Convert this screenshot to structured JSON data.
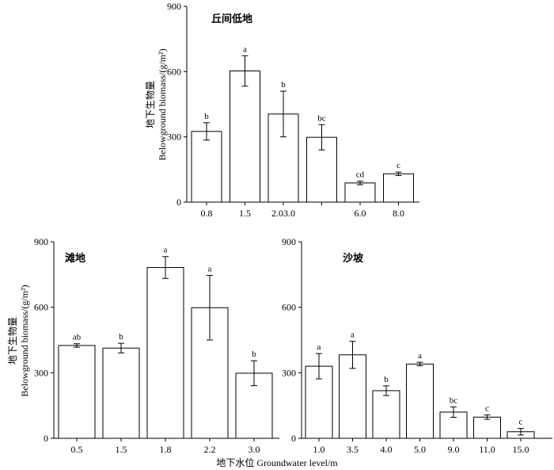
{
  "shared": {
    "ylabel_cn": "地下生物量",
    "ylabel_en": "Belowground biomass/(g/m²)",
    "xlabel": "地下水位 Groundwater level/m"
  },
  "chart_data": [
    {
      "type": "bar",
      "title": "丘间低地",
      "categories": [
        "0.8",
        "1.5",
        "2.03.0",
        "",
        "6.0",
        "8.0"
      ],
      "values": [
        325,
        603,
        405,
        298,
        88,
        130
      ],
      "errors": [
        40,
        70,
        105,
        58,
        8,
        8
      ],
      "significance": [
        "b",
        "a",
        "b",
        "bc",
        "cd",
        "c"
      ],
      "ylim": [
        0,
        900
      ],
      "yticks": [
        "0",
        "300",
        "600",
        "900"
      ],
      "ylabel": "地下生物量 Belowground biomass/(g/m²)"
    },
    {
      "type": "bar",
      "title": "滩地",
      "categories": [
        "0.5",
        "1.5",
        "1.8",
        "2.2",
        "3.0"
      ],
      "values": [
        425,
        413,
        782,
        598,
        298
      ],
      "errors": [
        8,
        22,
        50,
        148,
        57
      ],
      "significance": [
        "ab",
        "b",
        "a",
        "a",
        "b"
      ],
      "ylim": [
        0,
        900
      ],
      "yticks": [
        "0",
        "300",
        "600",
        "900"
      ],
      "ylabel": "地下生物量 Belowground biomass/(g/m²)"
    },
    {
      "type": "bar",
      "title": "沙坡",
      "categories": [
        "1.0",
        "3.5",
        "4.0",
        "5.0",
        "9.0",
        "11.0",
        "15.0"
      ],
      "values": [
        330,
        382,
        218,
        340,
        120,
        97,
        30
      ],
      "errors": [
        58,
        62,
        22,
        8,
        24,
        10,
        15
      ],
      "significance": [
        "a",
        "a",
        "b",
        "a",
        "bc",
        "c",
        "c"
      ],
      "ylim": [
        0,
        900
      ],
      "yticks": [
        "0",
        "300",
        "600",
        "900"
      ]
    }
  ]
}
